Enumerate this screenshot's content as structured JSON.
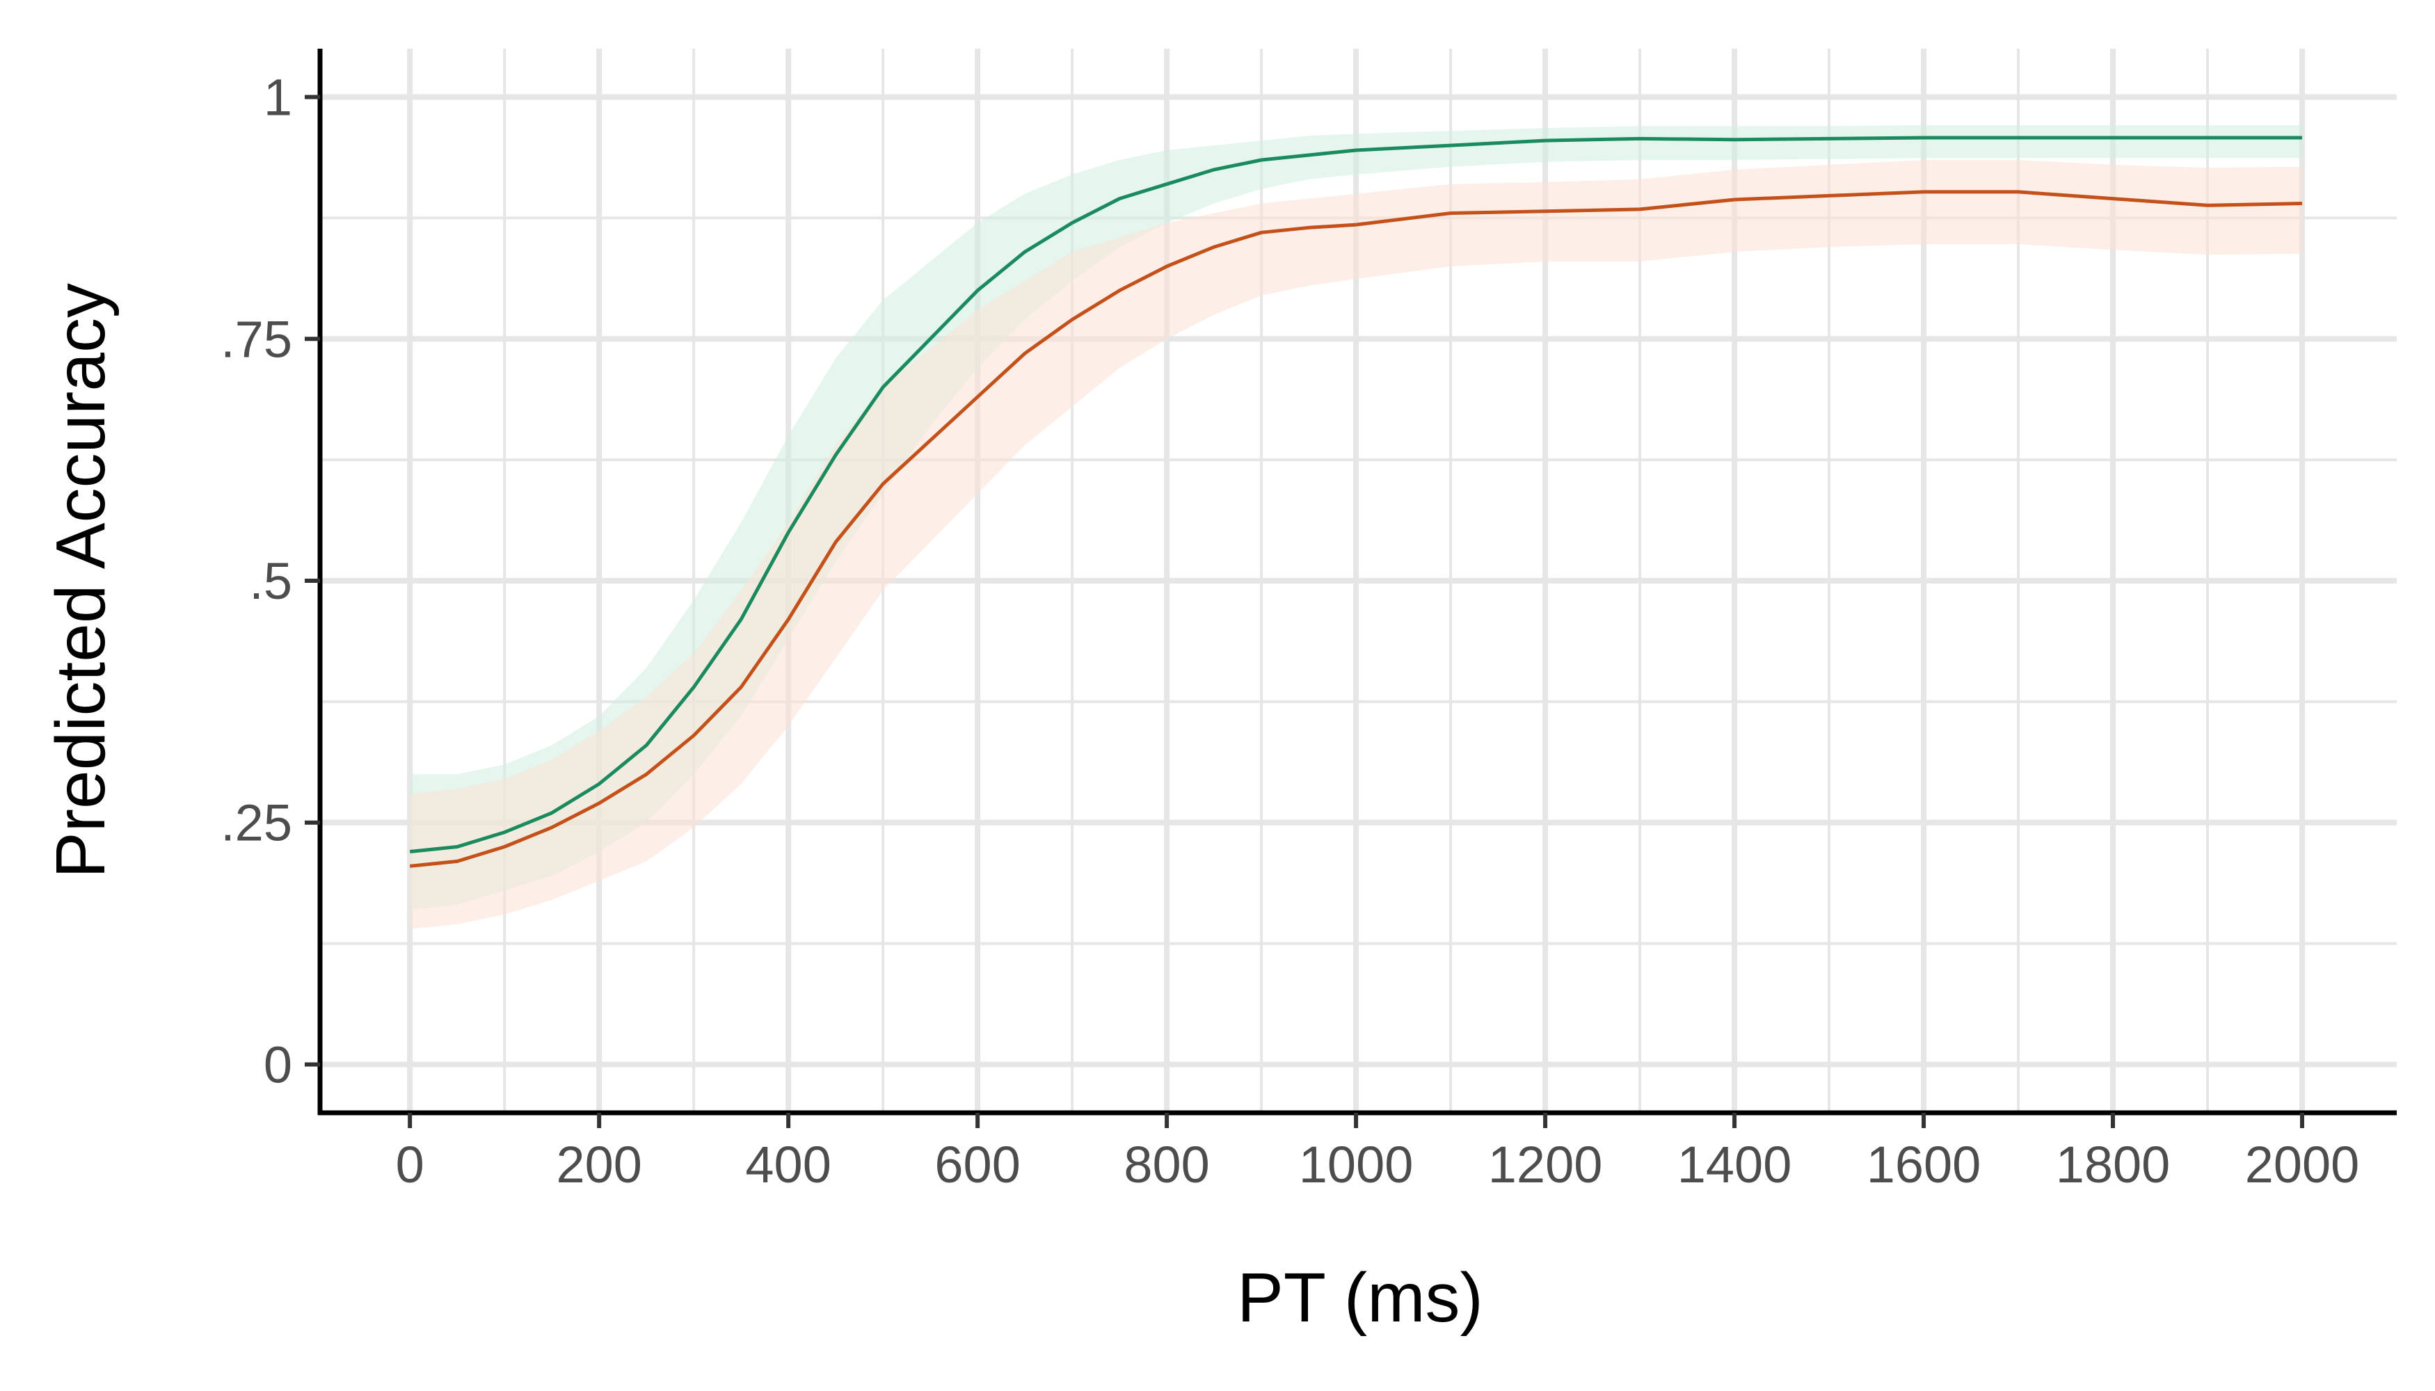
{
  "chart_data": {
    "type": "line",
    "title": "",
    "xlabel": "PT (ms)",
    "ylabel": "Predicted Accuracy",
    "xlim": [
      -95,
      2100
    ],
    "ylim": [
      -0.05,
      1.05
    ],
    "grid": true,
    "legend": "none",
    "x_ticks": [
      0,
      200,
      400,
      600,
      800,
      1000,
      1200,
      1400,
      1600,
      1800,
      2000
    ],
    "x_tick_labels": [
      "0",
      "200",
      "400",
      "600",
      "800",
      "1000",
      "1200",
      "1400",
      "1600",
      "1800",
      "2000"
    ],
    "y_ticks": [
      0,
      0.25,
      0.5,
      0.75,
      1
    ],
    "y_tick_labels": [
      "0",
      ".25",
      ".5",
      ".75",
      "1"
    ],
    "colors": {
      "green": "#1b8a5e",
      "orange": "#c4501a",
      "grid": "#e6e6e6",
      "axis": "#000000"
    },
    "series": [
      {
        "color": "#1b8a5e",
        "band_color": "#cdeee0",
        "points": [
          {
            "x": 0,
            "y": 0.22,
            "lo": 0.16,
            "hi": 0.3
          },
          {
            "x": 50,
            "y": 0.225,
            "lo": 0.165,
            "hi": 0.3
          },
          {
            "x": 100,
            "y": 0.24,
            "lo": 0.18,
            "hi": 0.31
          },
          {
            "x": 150,
            "y": 0.26,
            "lo": 0.195,
            "hi": 0.33
          },
          {
            "x": 200,
            "y": 0.29,
            "lo": 0.22,
            "hi": 0.36
          },
          {
            "x": 250,
            "y": 0.33,
            "lo": 0.25,
            "hi": 0.41
          },
          {
            "x": 300,
            "y": 0.39,
            "lo": 0.3,
            "hi": 0.48
          },
          {
            "x": 350,
            "y": 0.46,
            "lo": 0.36,
            "hi": 0.56
          },
          {
            "x": 400,
            "y": 0.55,
            "lo": 0.44,
            "hi": 0.65
          },
          {
            "x": 450,
            "y": 0.63,
            "lo": 0.52,
            "hi": 0.73
          },
          {
            "x": 500,
            "y": 0.7,
            "lo": 0.59,
            "hi": 0.79
          },
          {
            "x": 550,
            "y": 0.75,
            "lo": 0.66,
            "hi": 0.83
          },
          {
            "x": 600,
            "y": 0.8,
            "lo": 0.72,
            "hi": 0.87
          },
          {
            "x": 650,
            "y": 0.84,
            "lo": 0.77,
            "hi": 0.9
          },
          {
            "x": 700,
            "y": 0.87,
            "lo": 0.81,
            "hi": 0.92
          },
          {
            "x": 750,
            "y": 0.895,
            "lo": 0.845,
            "hi": 0.935
          },
          {
            "x": 800,
            "y": 0.91,
            "lo": 0.87,
            "hi": 0.945
          },
          {
            "x": 850,
            "y": 0.925,
            "lo": 0.89,
            "hi": 0.95
          },
          {
            "x": 900,
            "y": 0.935,
            "lo": 0.905,
            "hi": 0.955
          },
          {
            "x": 950,
            "y": 0.94,
            "lo": 0.915,
            "hi": 0.96
          },
          {
            "x": 1000,
            "y": 0.945,
            "lo": 0.92,
            "hi": 0.962
          },
          {
            "x": 1100,
            "y": 0.95,
            "lo": 0.928,
            "hi": 0.965
          },
          {
            "x": 1200,
            "y": 0.955,
            "lo": 0.933,
            "hi": 0.968
          },
          {
            "x": 1300,
            "y": 0.957,
            "lo": 0.935,
            "hi": 0.97
          },
          {
            "x": 1400,
            "y": 0.956,
            "lo": 0.935,
            "hi": 0.97
          },
          {
            "x": 1500,
            "y": 0.957,
            "lo": 0.936,
            "hi": 0.97
          },
          {
            "x": 1600,
            "y": 0.958,
            "lo": 0.937,
            "hi": 0.971
          },
          {
            "x": 1700,
            "y": 0.958,
            "lo": 0.937,
            "hi": 0.971
          },
          {
            "x": 1800,
            "y": 0.958,
            "lo": 0.937,
            "hi": 0.971
          },
          {
            "x": 1900,
            "y": 0.958,
            "lo": 0.937,
            "hi": 0.971
          },
          {
            "x": 2000,
            "y": 0.958,
            "lo": 0.937,
            "hi": 0.971
          }
        ]
      },
      {
        "color": "#c4501a",
        "band_color": "#fbe1d6",
        "points": [
          {
            "x": 0,
            "y": 0.205,
            "lo": 0.14,
            "hi": 0.28
          },
          {
            "x": 50,
            "y": 0.21,
            "lo": 0.145,
            "hi": 0.285
          },
          {
            "x": 100,
            "y": 0.225,
            "lo": 0.155,
            "hi": 0.295
          },
          {
            "x": 150,
            "y": 0.245,
            "lo": 0.17,
            "hi": 0.315
          },
          {
            "x": 200,
            "y": 0.27,
            "lo": 0.19,
            "hi": 0.345
          },
          {
            "x": 250,
            "y": 0.3,
            "lo": 0.21,
            "hi": 0.38
          },
          {
            "x": 300,
            "y": 0.34,
            "lo": 0.245,
            "hi": 0.425
          },
          {
            "x": 350,
            "y": 0.39,
            "lo": 0.29,
            "hi": 0.49
          },
          {
            "x": 400,
            "y": 0.46,
            "lo": 0.35,
            "hi": 0.56
          },
          {
            "x": 450,
            "y": 0.54,
            "lo": 0.42,
            "hi": 0.64
          },
          {
            "x": 500,
            "y": 0.6,
            "lo": 0.49,
            "hi": 0.7
          },
          {
            "x": 550,
            "y": 0.645,
            "lo": 0.54,
            "hi": 0.74
          },
          {
            "x": 600,
            "y": 0.69,
            "lo": 0.59,
            "hi": 0.78
          },
          {
            "x": 650,
            "y": 0.735,
            "lo": 0.64,
            "hi": 0.81
          },
          {
            "x": 700,
            "y": 0.77,
            "lo": 0.68,
            "hi": 0.84
          },
          {
            "x": 750,
            "y": 0.8,
            "lo": 0.72,
            "hi": 0.855
          },
          {
            "x": 800,
            "y": 0.825,
            "lo": 0.75,
            "hi": 0.87
          },
          {
            "x": 850,
            "y": 0.845,
            "lo": 0.775,
            "hi": 0.88
          },
          {
            "x": 900,
            "y": 0.86,
            "lo": 0.795,
            "hi": 0.89
          },
          {
            "x": 950,
            "y": 0.865,
            "lo": 0.805,
            "hi": 0.895
          },
          {
            "x": 1000,
            "y": 0.868,
            "lo": 0.812,
            "hi": 0.9
          },
          {
            "x": 1100,
            "y": 0.88,
            "lo": 0.825,
            "hi": 0.91
          },
          {
            "x": 1200,
            "y": 0.882,
            "lo": 0.83,
            "hi": 0.912
          },
          {
            "x": 1300,
            "y": 0.884,
            "lo": 0.83,
            "hi": 0.915
          },
          {
            "x": 1400,
            "y": 0.894,
            "lo": 0.84,
            "hi": 0.925
          },
          {
            "x": 1500,
            "y": 0.898,
            "lo": 0.845,
            "hi": 0.93
          },
          {
            "x": 1600,
            "y": 0.902,
            "lo": 0.848,
            "hi": 0.935
          },
          {
            "x": 1700,
            "y": 0.902,
            "lo": 0.848,
            "hi": 0.935
          },
          {
            "x": 1800,
            "y": 0.895,
            "lo": 0.842,
            "hi": 0.93
          },
          {
            "x": 1900,
            "y": 0.888,
            "lo": 0.837,
            "hi": 0.927
          },
          {
            "x": 2000,
            "y": 0.89,
            "lo": 0.838,
            "hi": 0.928
          }
        ]
      }
    ]
  }
}
